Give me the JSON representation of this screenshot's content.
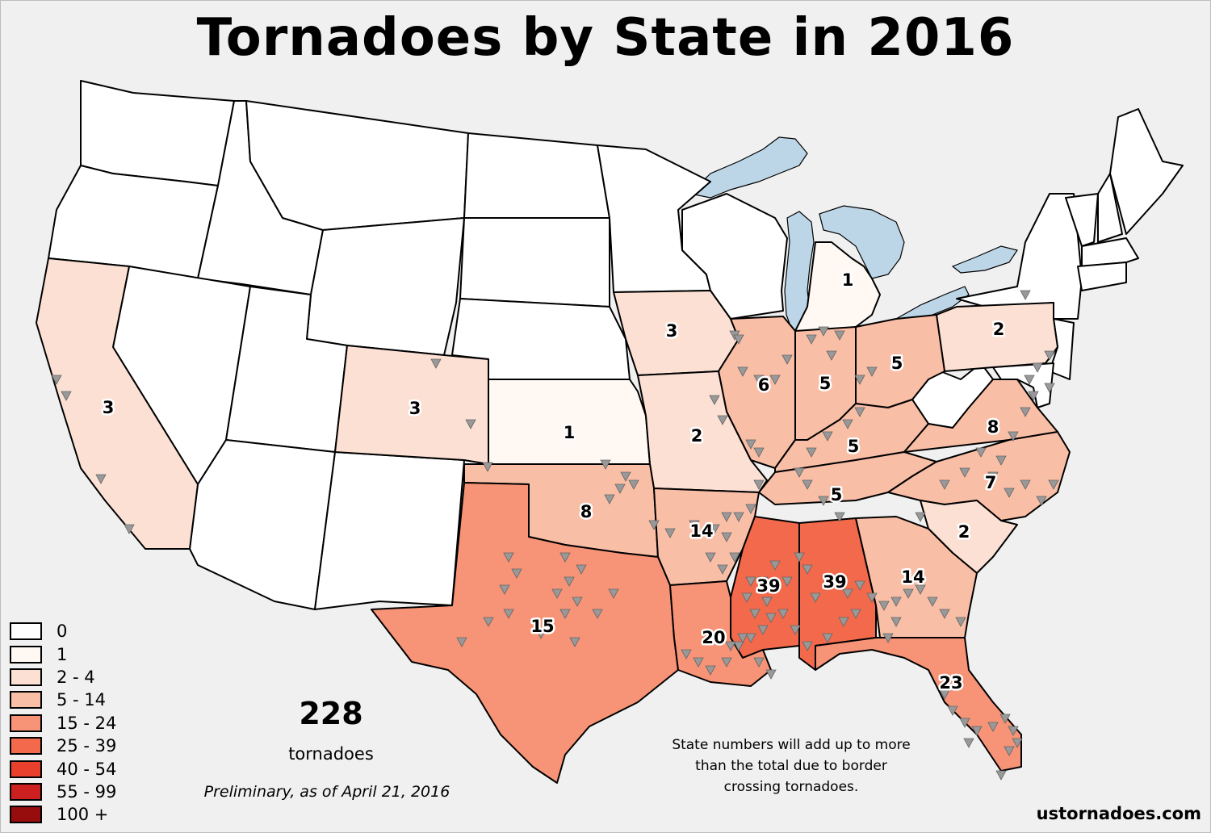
{
  "title": "Tornadoes by State in 2016",
  "colors": {
    "background": "#f0f0f0",
    "water": "#bcd6e8",
    "border": "#000000",
    "marker": "#999999"
  },
  "legend": [
    {
      "label": "0",
      "color": "#ffffff"
    },
    {
      "label": "1",
      "color": "#fff8f3"
    },
    {
      "label": "2 - 4",
      "color": "#fce0d4"
    },
    {
      "label": "5 - 14",
      "color": "#f9bea6"
    },
    {
      "label": "15 - 24",
      "color": "#f79376"
    },
    {
      "label": "25 - 39",
      "color": "#f26a4b"
    },
    {
      "label": "40 - 54",
      "color": "#e8402d"
    },
    {
      "label": "55 - 99",
      "color": "#cc2020"
    },
    {
      "label": "100 +",
      "color": "#970d0d"
    }
  ],
  "states": [
    {
      "name": "CA",
      "count": "3"
    },
    {
      "name": "CO",
      "count": "3"
    },
    {
      "name": "KS",
      "count": "1"
    },
    {
      "name": "IA",
      "count": "3"
    },
    {
      "name": "MI",
      "count": "1"
    },
    {
      "name": "PA",
      "count": "2"
    },
    {
      "name": "IL",
      "count": "6"
    },
    {
      "name": "IN",
      "count": "5"
    },
    {
      "name": "OH",
      "count": "5"
    },
    {
      "name": "MO",
      "count": "2"
    },
    {
      "name": "KY",
      "count": "5"
    },
    {
      "name": "VA",
      "count": "8"
    },
    {
      "name": "TN",
      "count": "5"
    },
    {
      "name": "NC",
      "count": "7"
    },
    {
      "name": "OK",
      "count": "8"
    },
    {
      "name": "AR",
      "count": "14"
    },
    {
      "name": "SC",
      "count": "2"
    },
    {
      "name": "MS",
      "count": "39"
    },
    {
      "name": "AL",
      "count": "39"
    },
    {
      "name": "GA",
      "count": "14"
    },
    {
      "name": "TX",
      "count": "15"
    },
    {
      "name": "LA",
      "count": "20"
    },
    {
      "name": "FL",
      "count": "23"
    }
  ],
  "summary": {
    "total": "228",
    "unit": "tornadoes",
    "preliminary": "Preliminary, as of April 21, 2016",
    "note": "State numbers will add up to more than the total due to border crossing tornadoes.",
    "site": "ustornadoes.com"
  }
}
